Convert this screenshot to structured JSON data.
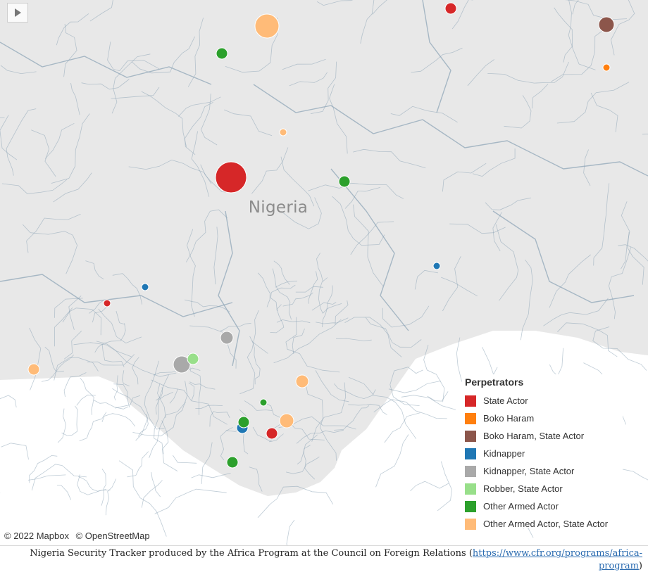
{
  "map": {
    "country_label": "Nigeria",
    "attribution": [
      "© 2022 Mapbox",
      "© OpenStreetMap"
    ],
    "land_color": "#e8e8e8",
    "sea_color": "#ffffff",
    "boundary_color": "#8aa3b5"
  },
  "legend": {
    "title": "Perpetrators",
    "items": [
      {
        "label": "State Actor",
        "color": "#d62728"
      },
      {
        "label": "Boko Haram",
        "color": "#ff7f0e"
      },
      {
        "label": "Boko Haram, State Actor",
        "color": "#8c564b"
      },
      {
        "label": "Kidnapper",
        "color": "#1f77b4"
      },
      {
        "label": "Kidnapper, State Actor",
        "color": "#a9a9a9"
      },
      {
        "label": "Robber, State Actor",
        "color": "#98df8a"
      },
      {
        "label": "Other Armed Actor",
        "color": "#2ca02c"
      },
      {
        "label": "Other Armed Actor, State Actor",
        "color": "#ffbb78"
      }
    ]
  },
  "caption": {
    "text": "Nigeria Security Tracker produced by the Africa Program at the Council on Foreign Relations (",
    "link": "https://www.cfr.org/programs/africa-program",
    "close": ")"
  }
}
